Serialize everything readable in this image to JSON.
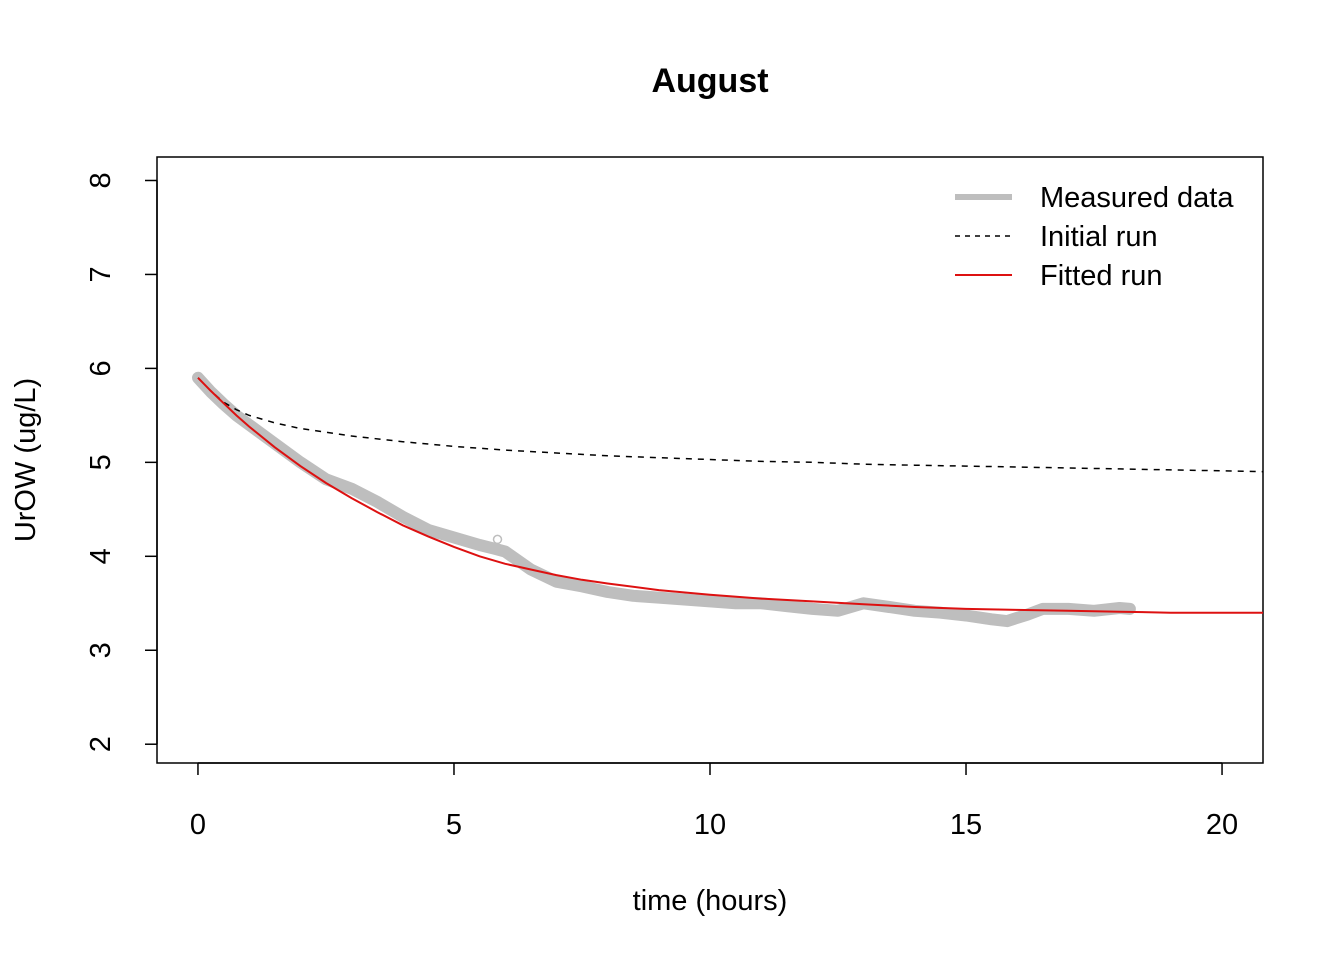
{
  "chart_data": {
    "type": "line",
    "title": "August",
    "xlabel": "time (hours)",
    "ylabel": "UrOW (ug/L)",
    "xlim": [
      -0.8,
      20.8
    ],
    "ylim": [
      1.8,
      8.25
    ],
    "x_ticks": [
      0,
      5,
      10,
      15,
      20
    ],
    "y_ticks": [
      2,
      3,
      4,
      5,
      6,
      7,
      8
    ],
    "grid": false,
    "legend_position": "top-right",
    "series": [
      {
        "name": "Measured data",
        "color": "#bebebe",
        "style": "thick-solid",
        "x": [
          0,
          0.25,
          0.5,
          0.75,
          1,
          1.5,
          2,
          2.5,
          3,
          3.5,
          4,
          4.5,
          5,
          5.5,
          5.8,
          6,
          6.5,
          7,
          7.5,
          8,
          8.5,
          9,
          9.5,
          10,
          10.5,
          11,
          11.5,
          12,
          12.5,
          13,
          13.5,
          14,
          14.5,
          15,
          15.5,
          15.8,
          16.2,
          16.5,
          17,
          17.5,
          18,
          18.2
        ],
        "y": [
          5.9,
          5.75,
          5.62,
          5.5,
          5.4,
          5.2,
          5.0,
          4.82,
          4.72,
          4.58,
          4.42,
          4.28,
          4.2,
          4.12,
          4.08,
          4.05,
          3.86,
          3.73,
          3.68,
          3.62,
          3.58,
          3.56,
          3.54,
          3.52,
          3.5,
          3.5,
          3.47,
          3.44,
          3.42,
          3.5,
          3.46,
          3.42,
          3.4,
          3.37,
          3.33,
          3.31,
          3.38,
          3.44,
          3.44,
          3.42,
          3.45,
          3.44
        ]
      },
      {
        "name": "Initial run",
        "color": "#000000",
        "style": "dashed",
        "x": [
          0,
          0.25,
          0.5,
          0.75,
          1,
          1.5,
          2,
          3,
          4,
          5,
          6,
          7,
          8,
          9,
          10,
          11,
          12,
          13,
          14,
          15,
          16,
          17,
          18,
          19,
          20,
          20.8
        ],
        "y": [
          5.9,
          5.76,
          5.64,
          5.56,
          5.5,
          5.42,
          5.36,
          5.28,
          5.22,
          5.17,
          5.13,
          5.1,
          5.07,
          5.05,
          5.03,
          5.01,
          5.0,
          4.98,
          4.97,
          4.96,
          4.95,
          4.94,
          4.93,
          4.92,
          4.91,
          4.9
        ]
      },
      {
        "name": "Fitted run",
        "color": "#dd1111",
        "style": "solid",
        "x": [
          0,
          0.25,
          0.5,
          0.75,
          1,
          1.5,
          2,
          2.5,
          3,
          3.5,
          4,
          4.5,
          5,
          5.5,
          6,
          6.5,
          7,
          7.5,
          8,
          9,
          10,
          11,
          12,
          13,
          14,
          15,
          16,
          17,
          18,
          19,
          20,
          20.8
        ],
        "y": [
          5.9,
          5.76,
          5.63,
          5.5,
          5.38,
          5.16,
          4.96,
          4.78,
          4.62,
          4.47,
          4.33,
          4.21,
          4.1,
          4.0,
          3.92,
          3.86,
          3.8,
          3.75,
          3.71,
          3.64,
          3.59,
          3.55,
          3.52,
          3.49,
          3.46,
          3.44,
          3.43,
          3.42,
          3.41,
          3.4,
          3.4,
          3.4
        ]
      }
    ],
    "outliers": [
      {
        "x": 5.85,
        "y": 4.18
      }
    ]
  }
}
